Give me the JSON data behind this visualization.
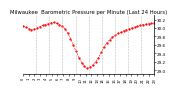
{
  "title": "Milwaukee  Barometric Pressure per Minute (Last 24 Hours)",
  "line_color": "#ff0000",
  "bg_color": "#ffffff",
  "plot_bg_color": "#ffffff",
  "grid_color": "#aaaaaa",
  "ylabel_color": "#000000",
  "y_values": [
    30.05,
    30.02,
    29.98,
    29.95,
    29.97,
    30.0,
    30.03,
    30.06,
    30.08,
    30.1,
    30.12,
    30.13,
    30.11,
    30.08,
    30.04,
    29.98,
    29.88,
    29.75,
    29.6,
    29.45,
    29.3,
    29.18,
    29.1,
    29.05,
    29.08,
    29.12,
    29.2,
    29.3,
    29.42,
    29.55,
    29.65,
    29.72,
    29.78,
    29.83,
    29.87,
    29.9,
    29.93,
    29.96,
    29.98,
    30.0,
    30.02,
    30.04,
    30.06,
    30.08,
    30.09,
    30.1,
    30.11,
    30.12
  ],
  "ylim": [
    28.9,
    30.3
  ],
  "yticks": [
    29.0,
    29.2,
    29.4,
    29.6,
    29.8,
    30.0,
    30.2
  ],
  "ytick_labels": [
    "29.0",
    "29.2",
    "29.4",
    "29.6",
    "29.8",
    "30.0",
    "30.2"
  ],
  "num_vgrid_lines": 9,
  "title_fontsize": 3.8,
  "tick_fontsize": 3.0,
  "marker": ".",
  "markersize": 1.2,
  "linewidth": 0.4,
  "linestyle": "--"
}
